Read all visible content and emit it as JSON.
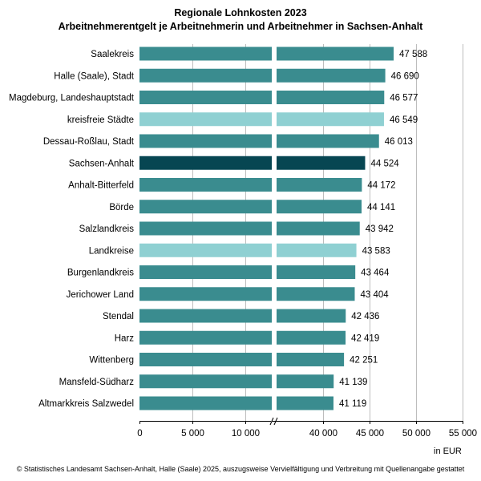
{
  "chart_data": {
    "type": "bar",
    "orientation": "horizontal",
    "title": "Regionale Lohnkosten 2023",
    "subtitle": "Arbeitnehmerentgelt je Arbeitnehmerin und Arbeitnehmer in Sachsen-Anhalt",
    "categories": [
      "Saalekreis",
      "Halle (Saale), Stadt",
      "Magdeburg, Landeshauptstadt",
      "kreisfreie Städte",
      "Dessau-Roßlau, Stadt",
      "Sachsen-Anhalt",
      "Anhalt-Bitterfeld",
      "Börde",
      "Salzlandkreis",
      "Landkreise",
      "Burgenlandkreis",
      "Jerichower Land",
      "Stendal",
      "Harz",
      "Wittenberg",
      "Mansfeld-Südharz",
      "Altmarkkreis Salzwedel"
    ],
    "values": [
      47588,
      46690,
      46577,
      46549,
      46013,
      44524,
      44172,
      44141,
      43942,
      43583,
      43464,
      43404,
      42436,
      42419,
      42251,
      41139,
      41119
    ],
    "value_labels": [
      "47 588",
      "46 690",
      "46 577",
      "46 549",
      "46 013",
      "44 524",
      "44 172",
      "44 141",
      "43 942",
      "43 583",
      "43 464",
      "43 404",
      "42 436",
      "42 419",
      "42 251",
      "41 139",
      "41 119"
    ],
    "bar_kind": [
      "region",
      "region",
      "region",
      "aggregate",
      "region",
      "state",
      "region",
      "region",
      "region",
      "aggregate",
      "region",
      "region",
      "region",
      "region",
      "region",
      "region",
      "region"
    ],
    "axis_break": {
      "from": 12500,
      "to": 35000
    },
    "xticks": [
      0,
      5000,
      10000,
      40000,
      45000,
      50000,
      55000
    ],
    "xtick_labels": [
      "0",
      "5 000",
      "10 000",
      "40 000",
      "45 000",
      "50 000",
      "55 000"
    ],
    "xlim": [
      0,
      55000
    ],
    "xlabel": "in EUR",
    "grid": true
  },
  "colors": {
    "region": "#3a8c8f",
    "aggregate": "#8fd0d2",
    "state": "#074652",
    "grid": "#bdbdbd"
  },
  "unit_label": "in EUR",
  "footer": "© Statistisches Landesamt Sachsen-Anhalt, Halle (Saale) 2025, auszugsweise Vervielfältigung und Verbreitung mit Quellenangabe gestattet"
}
